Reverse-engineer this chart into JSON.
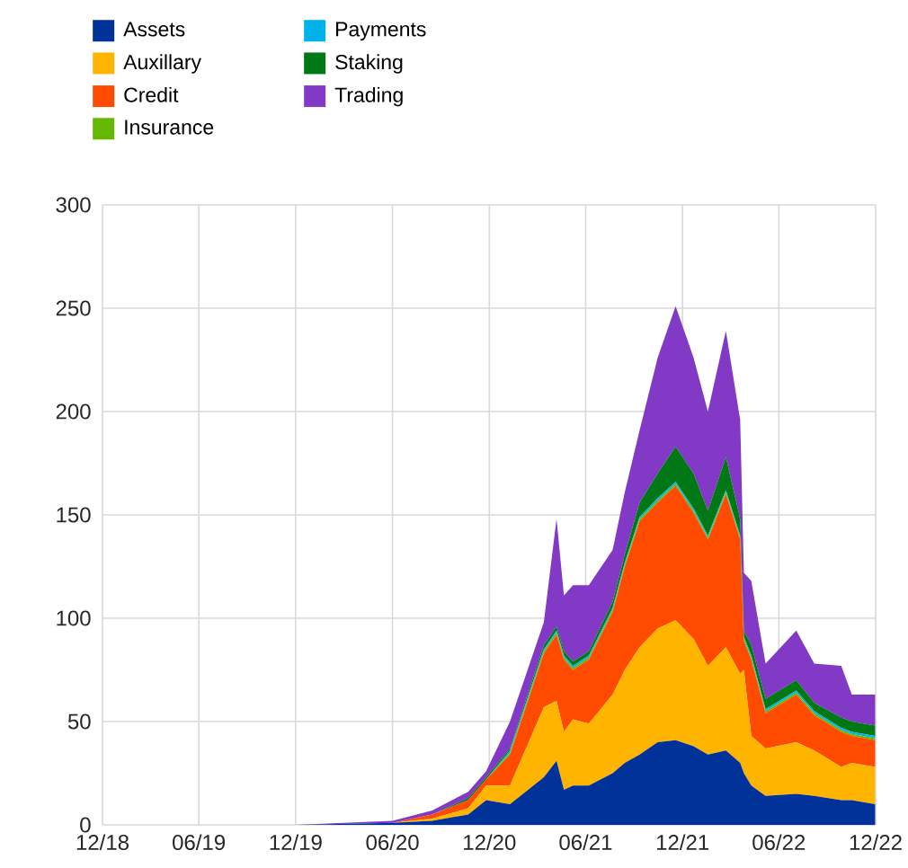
{
  "chart_data": {
    "type": "area",
    "stacked": true,
    "grid": true,
    "legend": "top",
    "x": [
      "2018-12-01",
      "2019-06-01",
      "2019-12-01",
      "2020-06-01",
      "2020-08-15",
      "2020-10-22",
      "2020-11-25",
      "2021-01-09",
      "2021-03-14",
      "2021-04-07",
      "2021-04-21",
      "2021-05-08",
      "2021-06-07",
      "2021-07-22",
      "2021-08-14",
      "2021-09-11",
      "2021-10-15",
      "2021-11-18",
      "2021-12-22",
      "2022-01-18",
      "2022-02-21",
      "2022-03-20",
      "2022-03-27",
      "2022-04-10",
      "2022-05-07",
      "2022-07-04",
      "2022-08-07",
      "2022-09-27",
      "2022-10-17",
      "2022-11-30"
    ],
    "xlim": [
      "2018-12-01",
      "2022-12-01"
    ],
    "xticks": [
      {
        "value": "2018-12-01",
        "label": "12/18"
      },
      {
        "value": "2019-06-01",
        "label": "06/19"
      },
      {
        "value": "2019-12-01",
        "label": "12/19"
      },
      {
        "value": "2020-06-01",
        "label": "06/20"
      },
      {
        "value": "2020-12-01",
        "label": "12/20"
      },
      {
        "value": "2021-06-01",
        "label": "06/21"
      },
      {
        "value": "2021-12-01",
        "label": "12/21"
      },
      {
        "value": "2022-06-01",
        "label": "06/22"
      },
      {
        "value": "2022-12-01",
        "label": "12/22"
      }
    ],
    "ylim": [
      0,
      300
    ],
    "yticks": [
      0,
      50,
      100,
      150,
      200,
      250,
      300
    ],
    "series": [
      {
        "name": "Assets",
        "color": "#003299",
        "values": [
          0,
          0,
          0,
          1,
          2,
          5,
          12,
          10,
          23,
          31,
          17,
          19,
          19,
          25,
          30,
          34,
          40,
          41,
          38,
          34,
          36,
          30,
          25,
          19,
          14,
          15,
          14,
          12,
          12,
          10
        ]
      },
      {
        "name": "Auxillary",
        "color": "#ffb400",
        "values": [
          0,
          0,
          0,
          0,
          1,
          3,
          7,
          9,
          34,
          29,
          28,
          32,
          30,
          38,
          45,
          52,
          55,
          58,
          52,
          43,
          50,
          43,
          50,
          24,
          23,
          25,
          22,
          16,
          18,
          18
        ]
      },
      {
        "name": "Credit",
        "color": "#ff4b00",
        "values": [
          0,
          0,
          0,
          0,
          2,
          4,
          3,
          15,
          26,
          32,
          35,
          24,
          31,
          40,
          50,
          61,
          61,
          65,
          61,
          61,
          74,
          65,
          14,
          37,
          17,
          23,
          17,
          17,
          13,
          13
        ]
      },
      {
        "name": "Insurance",
        "color": "#65b800",
        "values": [
          0,
          0,
          0,
          0,
          0,
          0,
          0,
          1,
          1,
          1,
          1,
          1,
          1,
          1,
          1,
          1,
          1,
          1,
          1,
          1,
          1,
          1,
          1,
          1,
          1,
          1,
          1,
          1,
          1,
          1
        ]
      },
      {
        "name": "Payments",
        "color": "#00b1ea",
        "values": [
          0,
          0,
          0,
          0,
          0,
          0,
          0,
          1,
          1,
          1,
          1,
          1,
          1,
          1,
          1,
          1,
          1,
          1,
          1,
          1,
          1,
          1,
          1,
          1,
          1,
          1,
          1,
          1,
          1,
          1
        ]
      },
      {
        "name": "Staking",
        "color": "#007816",
        "values": [
          0,
          0,
          0,
          0,
          0,
          1,
          1,
          1,
          2,
          2,
          2,
          2,
          2,
          3,
          4,
          7,
          12,
          17,
          17,
          12,
          16,
          8,
          3,
          5,
          5,
          5,
          4,
          5,
          5,
          5
        ]
      },
      {
        "name": "Trading",
        "color": "#8139c6",
        "values": [
          0,
          0,
          0,
          1,
          2,
          3,
          3,
          13,
          11,
          52,
          27,
          37,
          32,
          25,
          30,
          35,
          56,
          68,
          56,
          48,
          61,
          48,
          28,
          31,
          17,
          24,
          19,
          25,
          13,
          15
        ]
      }
    ]
  }
}
